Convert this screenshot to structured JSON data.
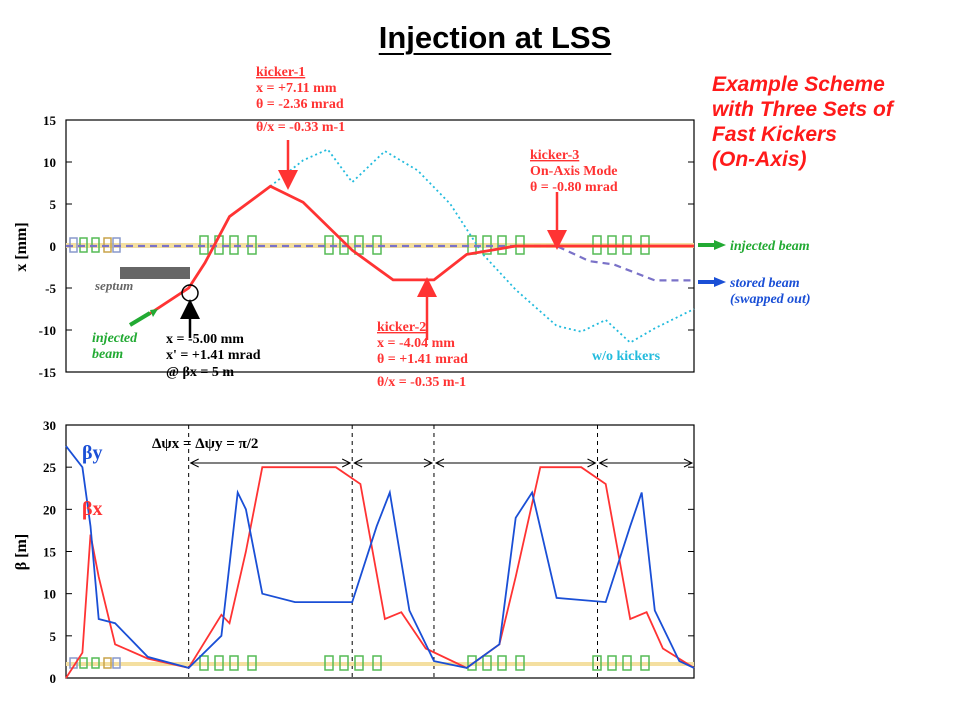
{
  "title": "Injection at LSS",
  "scheme_lines": [
    "Example Scheme",
    "with Three Sets of",
    "Fast Kickers",
    "(On-Axis)"
  ],
  "colors": {
    "red": "#ff3333",
    "cyan": "#22bbdd",
    "blue": "#1a4fd6",
    "green": "#22aa33",
    "violet": "#7a72c8",
    "magnet": "#55bb55"
  },
  "chart_data": [
    {
      "type": "line",
      "ylabel": "x [mm]",
      "xlim": [
        0,
        3.84
      ],
      "ylim": [
        -15,
        15
      ],
      "yticks": [
        15,
        10,
        5,
        0,
        -5,
        -10,
        -15
      ],
      "grid": false,
      "series": [
        {
          "x": [
            0.5,
            0.75,
            0.85,
            1.0,
            1.25,
            1.45,
            1.75,
            2.0,
            2.25,
            2.45,
            2.75,
            3.0,
            3.3,
            3.84
          ],
          "y": [
            -8.2,
            -5.0,
            -2.0,
            3.5,
            7.11,
            5.2,
            -0.5,
            -4.04,
            -4.04,
            -1.0,
            0,
            0,
            0,
            0
          ]
        },
        {
          "x": [
            1.25,
            1.45,
            1.6,
            1.75,
            1.95,
            2.15,
            2.35,
            2.55,
            2.75,
            3.0,
            3.15,
            3.3,
            3.45,
            3.6,
            3.84
          ],
          "y": [
            7.11,
            10.2,
            11.5,
            7.6,
            11.3,
            9.0,
            5.0,
            -1.0,
            -5.2,
            -9.5,
            -10.2,
            -8.8,
            -11.5,
            -9.8,
            -7.5
          ]
        },
        {
          "x": [
            0.0,
            0.5,
            0.75,
            0.9,
            1.0,
            1.1,
            1.25,
            1.5,
            2.0,
            2.5,
            2.75,
            3.0,
            3.2,
            3.35,
            3.6,
            3.84
          ],
          "y": [
            0,
            0,
            0,
            0,
            0,
            0,
            0,
            0,
            0,
            0,
            0,
            0,
            -1.8,
            -2.2,
            -4.1,
            -4.1
          ]
        }
      ],
      "annotations": {
        "kicker1": [
          "kicker-1",
          "x = +7.11 mm",
          "θ = -2.36 mrad",
          "θ/x = -0.33 m-1"
        ],
        "kicker2": [
          "kicker-2",
          "x = -4.04 mm",
          "θ = +1.41 mrad",
          "θ/x = -0.35 m-1"
        ],
        "kicker3": [
          "kicker-3",
          "On-Axis Mode",
          "θ = -0.80 mrad"
        ],
        "septum": "septum",
        "injected_left": [
          "injected",
          "beam"
        ],
        "inject_point": [
          "x = -5.00 mm",
          "x' = +1.41 mrad",
          "@ βx = 5 m"
        ],
        "injected_beam": "injected beam",
        "stored_beam": [
          "stored beam",
          "(swapped out)"
        ],
        "wo_kickers": "w/o kickers"
      }
    },
    {
      "type": "line",
      "ylabel": "β [m]",
      "xlim": [
        0,
        3.84
      ],
      "ylim": [
        0,
        30
      ],
      "yticks": [
        30,
        25,
        20,
        15,
        10,
        5,
        0
      ],
      "grid": false,
      "phase_label": "Δψx = Δψy = π/2",
      "series": [
        {
          "name": "βy",
          "x": [
            0.0,
            0.1,
            0.15,
            0.2,
            0.3,
            0.5,
            0.75,
            0.95,
            1.05,
            1.1,
            1.2,
            1.4,
            1.75,
            1.9,
            1.98,
            2.1,
            2.25,
            2.45,
            2.65,
            2.75,
            2.85,
            3.0,
            3.3,
            3.45,
            3.52,
            3.6,
            3.75,
            3.84
          ],
          "y": [
            27.5,
            25,
            18,
            7,
            6.5,
            2.5,
            1.2,
            5,
            22,
            20,
            10,
            9,
            9,
            18,
            22,
            8,
            2,
            1.2,
            4,
            19,
            22,
            9.5,
            9,
            18,
            22,
            8,
            2,
            1.2
          ]
        },
        {
          "name": "βx",
          "x": [
            0.0,
            0.1,
            0.15,
            0.2,
            0.3,
            0.5,
            0.75,
            0.95,
            1.0,
            1.1,
            1.2,
            1.35,
            1.5,
            1.65,
            1.8,
            1.95,
            2.05,
            2.2,
            2.45,
            2.65,
            2.75,
            2.9,
            3.05,
            3.15,
            3.3,
            3.45,
            3.55,
            3.65,
            3.84
          ],
          "y": [
            0,
            3,
            17,
            12,
            4,
            2.3,
            1.2,
            7.5,
            6.5,
            15,
            25,
            25,
            25,
            25,
            23,
            7,
            7.8,
            3.5,
            1.2,
            4,
            12,
            25,
            25,
            25,
            23,
            7,
            7.8,
            3.5,
            1.2
          ]
        }
      ]
    }
  ]
}
